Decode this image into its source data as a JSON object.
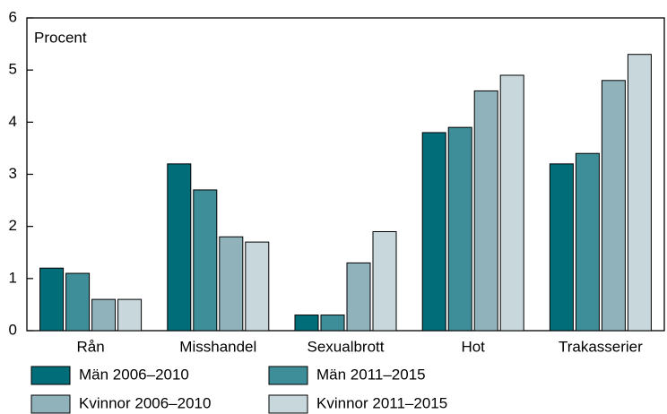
{
  "chart_data": {
    "type": "bar",
    "axis_label": "Procent",
    "categories": [
      "Rån",
      "Misshandel",
      "Sexualbrott",
      "Hot",
      "Trakasserier"
    ],
    "series": [
      {
        "name": "Män 2006–2010",
        "color": "#006d78",
        "values": [
          1.2,
          3.2,
          0.3,
          3.8,
          3.2
        ]
      },
      {
        "name": "Män 2011–2015",
        "color": "#3e8e99",
        "values": [
          1.1,
          2.7,
          0.3,
          3.9,
          3.4
        ]
      },
      {
        "name": "Kvinnor 2006–2010",
        "color": "#8fb2bb",
        "values": [
          0.6,
          1.8,
          1.3,
          4.6,
          4.8
        ]
      },
      {
        "name": "Kvinnor 2011–2015",
        "color": "#c8d7dc",
        "values": [
          0.6,
          1.7,
          1.9,
          4.9,
          5.3
        ]
      }
    ],
    "ylim": [
      0,
      6
    ],
    "yticks": [
      0,
      1,
      2,
      3,
      4,
      5,
      6
    ],
    "grid": false
  }
}
